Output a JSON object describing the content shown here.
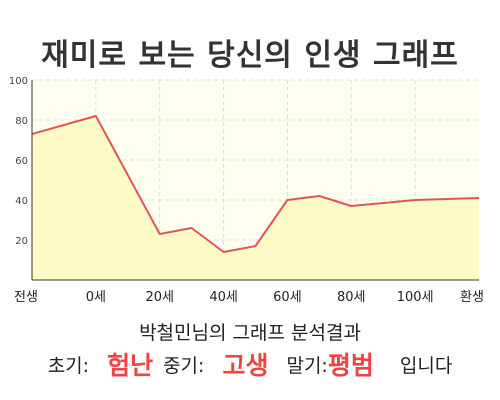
{
  "title": "재미로 보는 당신의 인생 그래프",
  "chart_data": {
    "type": "area",
    "categories": [
      "전생",
      "0세",
      "20세",
      "40세",
      "60세",
      "80세",
      "100세",
      "환생"
    ],
    "x": [
      -2,
      0,
      2,
      4,
      6,
      8,
      10,
      12
    ],
    "series": [
      {
        "values": [
          {
            "x": -2.0,
            "y": 73
          },
          {
            "x": 0.0,
            "y": 82
          },
          {
            "x": 2.0,
            "y": 23
          },
          {
            "x": 3.0,
            "y": 26
          },
          {
            "x": 4.0,
            "y": 14
          },
          {
            "x": 5.0,
            "y": 17
          },
          {
            "x": 6.0,
            "y": 40
          },
          {
            "x": 7.0,
            "y": 42
          },
          {
            "x": 8.0,
            "y": 37
          },
          {
            "x": 10.0,
            "y": 40
          },
          {
            "x": 12.0,
            "y": 41
          }
        ]
      }
    ],
    "ylim": [
      0,
      100
    ],
    "yticks": [
      "20",
      "40",
      "60",
      "80",
      "100"
    ],
    "grid": true,
    "colors": {
      "line": "#e0555a",
      "fill": "#fdfbc5",
      "plot_bg": "#fffff0",
      "grid": "#dddddd"
    }
  },
  "analysis": {
    "heading": "박철민님의 그래프 분석결과",
    "early_label": "초기:",
    "early_value": "험난",
    "mid_label": "중기:",
    "mid_value": "고생",
    "late_label": "말기:",
    "late_value": "평범",
    "suffix": "입니다"
  }
}
